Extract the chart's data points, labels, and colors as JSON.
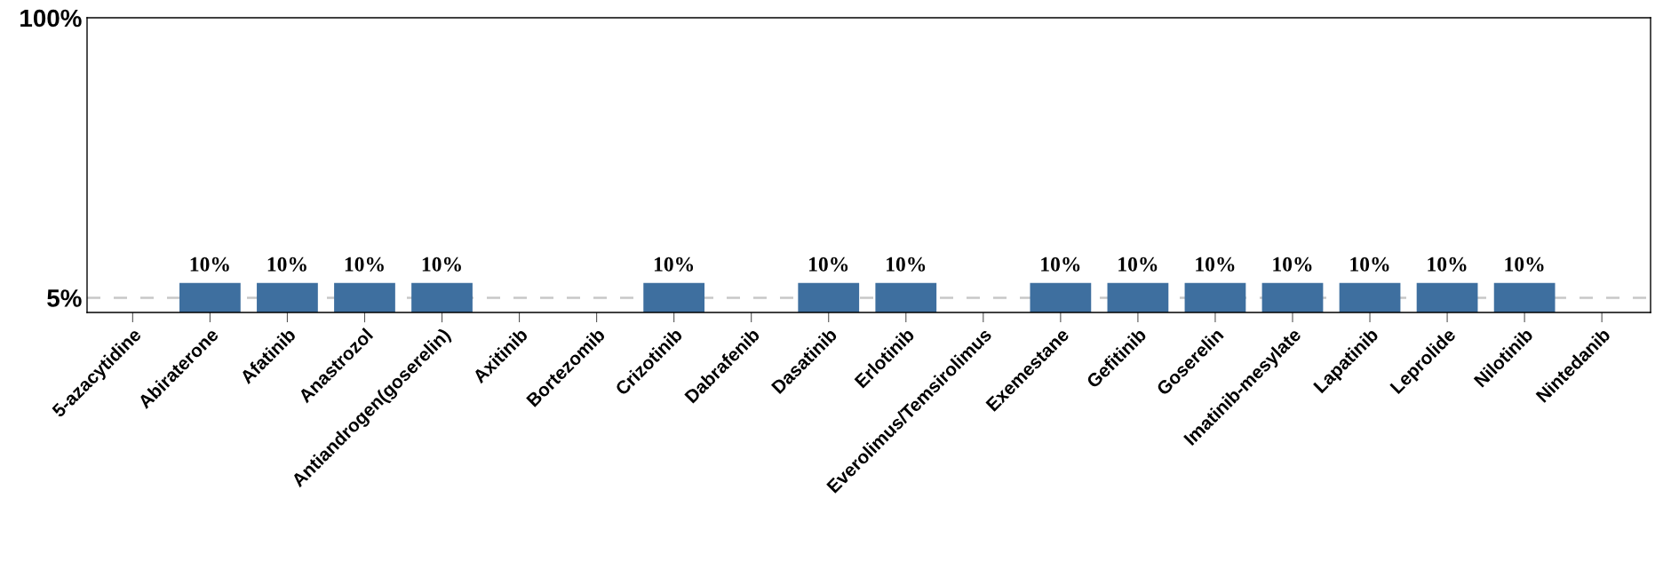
{
  "chart_data": {
    "type": "bar",
    "categories": [
      "5-azacytidine",
      "Abiraterone",
      "Afatinib",
      "Anastrozol",
      "Antiandrogen(goserelin)",
      "Axitinib",
      "Bortezomib",
      "Crizotinib",
      "Dabrafenib",
      "Dasatinib",
      "Erlotinib",
      "Everolimus/Temsirolimus",
      "Exemestane",
      "Gefitinib",
      "Goserelin",
      "Imatinib-mesylate",
      "Lapatinib",
      "Leprolide",
      "Nilotinib",
      "Nintedanib"
    ],
    "values": [
      null,
      10,
      10,
      10,
      10,
      null,
      null,
      10,
      null,
      10,
      10,
      null,
      10,
      10,
      10,
      10,
      10,
      10,
      10,
      null
    ],
    "value_labels": [
      null,
      "10%",
      "10%",
      "10%",
      "10%",
      null,
      null,
      "10%",
      null,
      "10%",
      "10%",
      null,
      "10%",
      "10%",
      "10%",
      "10%",
      "10%",
      "10%",
      "10%",
      null
    ],
    "color": "#3e6f9f",
    "ylim": [
      0,
      100
    ],
    "yticks": [
      {
        "value": 5,
        "label": "5%"
      },
      {
        "value": 100,
        "label": "100%"
      }
    ],
    "ref_lines": [
      {
        "axis": "y",
        "value": 5,
        "color": "#c8c8c8",
        "line_style": "dashed"
      }
    ],
    "grid": false,
    "legend": false
  }
}
